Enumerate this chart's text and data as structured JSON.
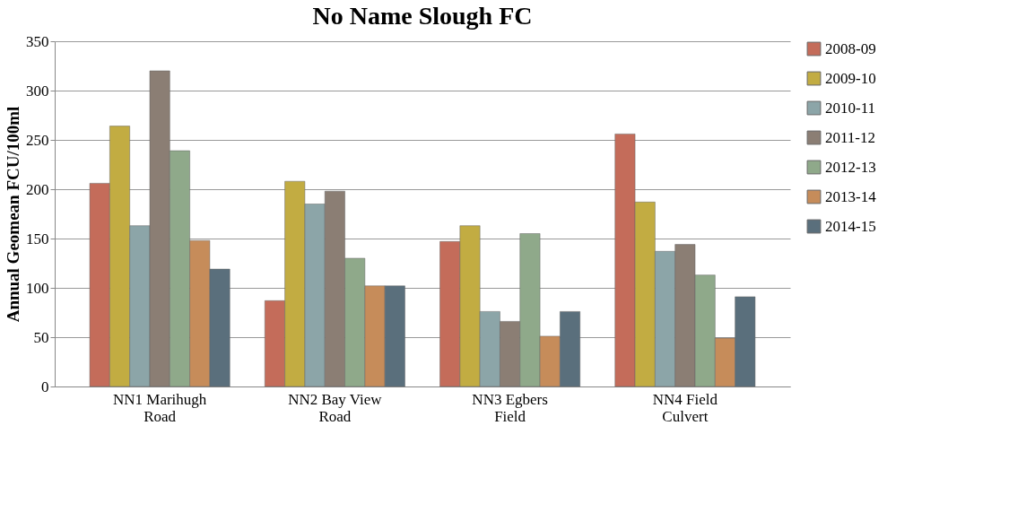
{
  "chart_data": {
    "type": "bar",
    "title": "No Name Slough FC",
    "ylabel": "Annual Geomean FCU/100ml",
    "categories": [
      "NN1 Marihugh Road",
      "NN2 Bay View Road",
      "NN3 Egbers Field",
      "NN4 Field Culvert"
    ],
    "series": [
      {
        "name": "2008-09",
        "color": "#c46c5a",
        "values": [
          206,
          87,
          147,
          256
        ]
      },
      {
        "name": "2009-10",
        "color": "#c2ac42",
        "values": [
          264,
          208,
          163,
          187
        ]
      },
      {
        "name": "2010-11",
        "color": "#8ca5a8",
        "values": [
          163,
          185,
          76,
          137
        ]
      },
      {
        "name": "2011-12",
        "color": "#8b7e74",
        "values": [
          320,
          198,
          66,
          144
        ]
      },
      {
        "name": "2012-13",
        "color": "#8fa98a",
        "values": [
          239,
          130,
          155,
          113
        ]
      },
      {
        "name": "2013-14",
        "color": "#c68c5a",
        "values": [
          148,
          102,
          51,
          49
        ]
      },
      {
        "name": "2014-15",
        "color": "#5a6f7c",
        "values": [
          119,
          102,
          76,
          91
        ]
      }
    ],
    "ylim": [
      0,
      350
    ],
    "yticks": [
      0,
      50,
      100,
      150,
      200,
      250,
      300,
      350
    ],
    "grid": "y",
    "legend": "right"
  }
}
